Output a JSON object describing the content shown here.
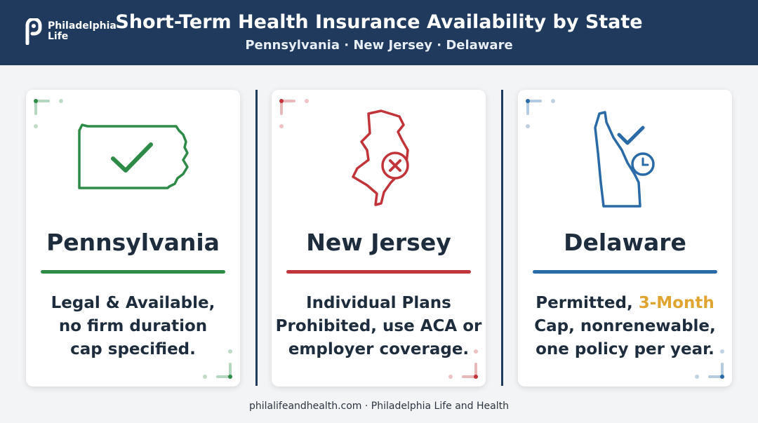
{
  "logo": {
    "line1": "Philadelphia",
    "line2": "Life"
  },
  "header": {
    "title": "Short-Term Health Insurance Availability by State",
    "subtitle": "Pennsylvania · New Jersey · Delaware"
  },
  "cards": [
    {
      "state": "Pennsylvania",
      "lines": [
        "Legal & Available,",
        "no firm duration",
        "cap specified."
      ]
    },
    {
      "state": "New Jersey",
      "lines": [
        "Individual Plans",
        "Prohibited, use ACA or",
        "employer coverage."
      ]
    },
    {
      "state": "Delaware",
      "lead": "Permitted,",
      "highlight": "3-Month",
      "lines": [
        "Cap, nonrenewable,",
        "one policy per year."
      ]
    }
  ],
  "footer": "philalifeandhealth.com · Philadelphia Life and Health"
}
